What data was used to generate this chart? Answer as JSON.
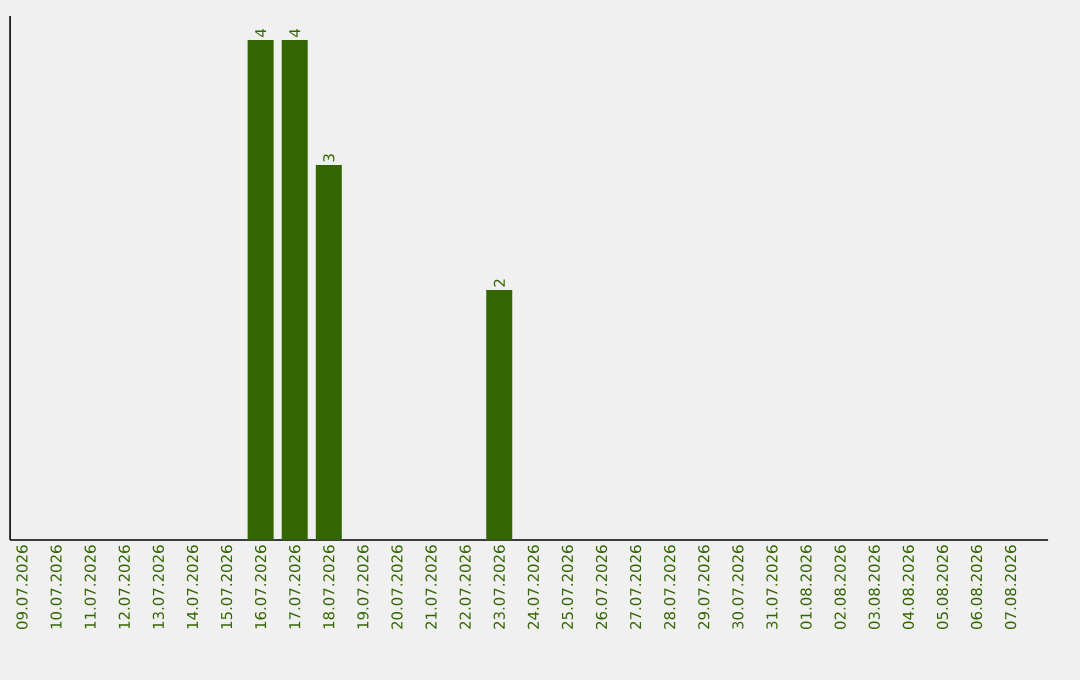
{
  "chart_data": {
    "type": "bar",
    "categories": [
      "09.07.2026",
      "10.07.2026",
      "11.07.2026",
      "12.07.2026",
      "13.07.2026",
      "14.07.2026",
      "15.07.2026",
      "16.07.2026",
      "17.07.2026",
      "18.07.2026",
      "19.07.2026",
      "20.07.2026",
      "21.07.2026",
      "22.07.2026",
      "23.07.2026",
      "24.07.2026",
      "25.07.2026",
      "26.07.2026",
      "27.07.2026",
      "28.07.2026",
      "29.07.2026",
      "30.07.2026",
      "31.07.2026",
      "01.08.2026",
      "02.08.2026",
      "03.08.2026",
      "04.08.2026",
      "05.08.2026",
      "06.08.2026",
      "07.08.2026"
    ],
    "values": [
      0,
      0,
      0,
      0,
      0,
      0,
      0,
      4,
      4,
      3,
      0,
      0,
      0,
      0,
      2,
      0,
      0,
      0,
      0,
      0,
      0,
      0,
      0,
      0,
      0,
      0,
      0,
      0,
      0,
      0
    ],
    "value_labels": [
      null,
      null,
      null,
      null,
      null,
      null,
      null,
      "4",
      "4",
      "3",
      null,
      null,
      null,
      null,
      "2",
      null,
      null,
      null,
      null,
      null,
      null,
      null,
      null,
      null,
      null,
      null,
      null,
      null,
      null,
      null
    ],
    "color": "#336600"
  }
}
